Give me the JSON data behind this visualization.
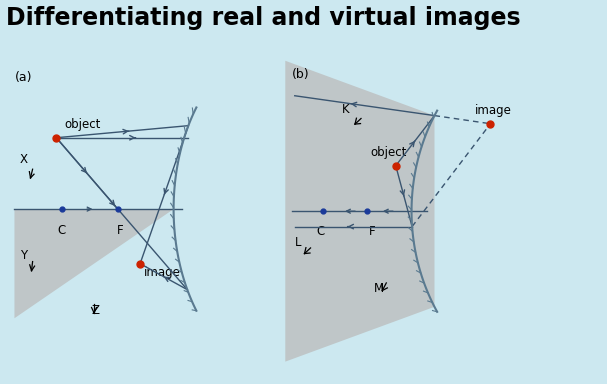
{
  "bg_color": "#cce8f0",
  "title": "Differentiating real and virtual images",
  "title_fontsize": 17,
  "title_fontweight": "bold",
  "panel_a_label": "(a)",
  "panel_b_label": "(b)",
  "mirror_color": "#5a7a90",
  "axis_color": "#3a5570",
  "ray_color": "#3a5570",
  "object_color": "#cc2200",
  "image_color": "#cc2200",
  "center_color": "#1a3a9a",
  "focus_color": "#1a3a9a",
  "shadow_color": "#bbbbbb",
  "label_fontsize": 9,
  "small_fontsize": 8.5
}
